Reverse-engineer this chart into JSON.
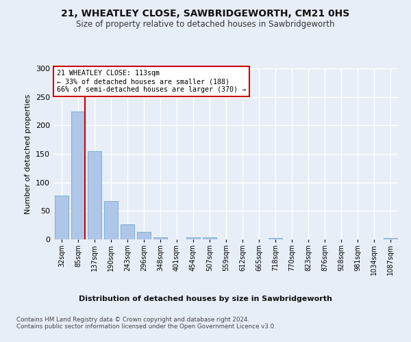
{
  "title_line1": "21, WHEATLEY CLOSE, SAWBRIDGEWORTH, CM21 0HS",
  "title_line2": "Size of property relative to detached houses in Sawbridgeworth",
  "xlabel": "Distribution of detached houses by size in Sawbridgeworth",
  "ylabel": "Number of detached properties",
  "bar_labels": [
    "32sqm",
    "85sqm",
    "137sqm",
    "190sqm",
    "243sqm",
    "296sqm",
    "348sqm",
    "401sqm",
    "454sqm",
    "507sqm",
    "559sqm",
    "612sqm",
    "665sqm",
    "718sqm",
    "770sqm",
    "823sqm",
    "876sqm",
    "928sqm",
    "981sqm",
    "1034sqm",
    "1087sqm"
  ],
  "bar_values": [
    77,
    224,
    155,
    67,
    27,
    13,
    4,
    0,
    4,
    4,
    0,
    0,
    0,
    3,
    0,
    0,
    0,
    0,
    0,
    0,
    3
  ],
  "bar_color": "#aec6e8",
  "bar_edge_color": "#7bafd4",
  "vline_x_index": 1,
  "vline_color": "#cc0000",
  "annotation_text": "21 WHEATLEY CLOSE: 113sqm\n← 33% of detached houses are smaller (188)\n66% of semi-detached houses are larger (370) →",
  "annotation_box_color": "#ffffff",
  "annotation_box_edge": "#cc0000",
  "ylim": [
    0,
    300
  ],
  "yticks": [
    0,
    50,
    100,
    150,
    200,
    250,
    300
  ],
  "footer_text": "Contains HM Land Registry data © Crown copyright and database right 2024.\nContains public sector information licensed under the Open Government Licence v3.0.",
  "bg_color": "#e8eef7",
  "plot_bg_color": "#e8eef7",
  "grid_color": "#ffffff"
}
